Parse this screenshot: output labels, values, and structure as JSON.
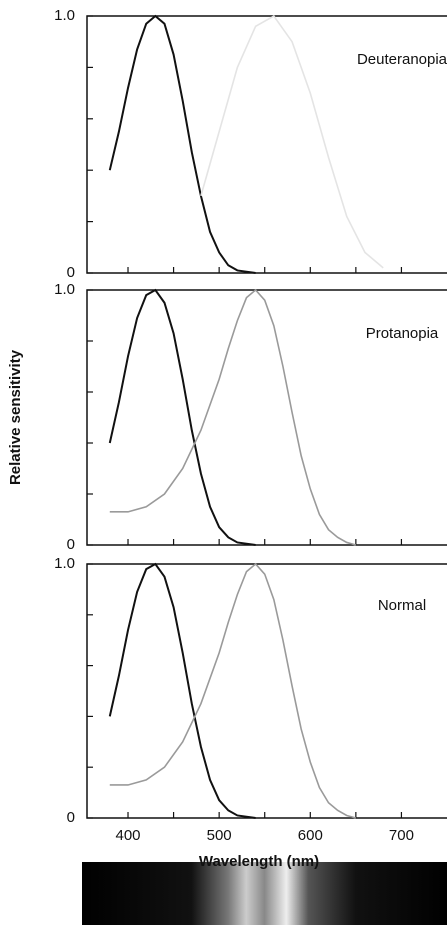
{
  "chart_data": [
    {
      "type": "line",
      "annotation": "Deuteranopia",
      "xlim": [
        355,
        750
      ],
      "ylim": [
        0,
        1
      ],
      "xticks": [
        400,
        500,
        600,
        700
      ],
      "xticks_minor": [
        450,
        550,
        650
      ],
      "xtick_labels": false,
      "yticks": [
        0,
        {
          "value": 1,
          "label": "1.0"
        }
      ],
      "yticks_minor": [
        0.2,
        0.4,
        0.6,
        0.8
      ],
      "series": [
        {
          "color": "#111111",
          "x": [
            380,
            390,
            400,
            410,
            420,
            430,
            440,
            450,
            460,
            470,
            480,
            490,
            500,
            510,
            520,
            530,
            540
          ],
          "values": [
            0.4,
            0.55,
            0.72,
            0.87,
            0.97,
            1.0,
            0.97,
            0.85,
            0.67,
            0.47,
            0.3,
            0.16,
            0.08,
            0.03,
            0.01,
            0.005,
            0
          ]
        },
        {
          "color": "#e4e4e4",
          "x": [
            480,
            500,
            520,
            540,
            560,
            580,
            600,
            620,
            640,
            660,
            680
          ],
          "values": [
            0.3,
            0.55,
            0.8,
            0.96,
            1.0,
            0.9,
            0.7,
            0.45,
            0.22,
            0.08,
            0.02
          ]
        }
      ]
    },
    {
      "type": "line",
      "annotation": "Protanopia",
      "ylabel": "Relative sensitivity",
      "xlim": [
        355,
        750
      ],
      "ylim": [
        0,
        1
      ],
      "xticks": [
        400,
        500,
        600,
        700
      ],
      "xticks_minor": [
        450,
        550,
        650
      ],
      "xtick_labels": false,
      "yticks": [
        0,
        {
          "value": 1,
          "label": "1.0"
        }
      ],
      "yticks_minor": [
        0.2,
        0.4,
        0.6,
        0.8
      ],
      "series": [
        {
          "color": "#111111",
          "x": [
            380,
            390,
            400,
            410,
            420,
            430,
            440,
            450,
            460,
            470,
            480,
            490,
            500,
            510,
            520,
            530,
            540
          ],
          "values": [
            0.4,
            0.56,
            0.74,
            0.89,
            0.98,
            1.0,
            0.95,
            0.83,
            0.65,
            0.45,
            0.28,
            0.15,
            0.07,
            0.03,
            0.01,
            0.005,
            0
          ]
        },
        {
          "color": "#9a9a9a",
          "x": [
            380,
            400,
            420,
            440,
            460,
            480,
            500,
            510,
            520,
            530,
            540,
            550,
            560,
            570,
            580,
            590,
            600,
            610,
            620,
            630,
            640,
            650
          ],
          "values": [
            0.13,
            0.13,
            0.15,
            0.2,
            0.3,
            0.45,
            0.65,
            0.77,
            0.88,
            0.97,
            1.0,
            0.96,
            0.86,
            0.7,
            0.52,
            0.35,
            0.22,
            0.12,
            0.06,
            0.03,
            0.01,
            0
          ]
        }
      ]
    },
    {
      "type": "line",
      "annotation": "Normal",
      "xlabel": "Wavelength (nm)",
      "xlim": [
        355,
        750
      ],
      "ylim": [
        0,
        1
      ],
      "xticks": [
        400,
        500,
        600,
        700
      ],
      "xticks_minor": [
        450,
        550,
        650
      ],
      "xtick_labels": true,
      "yticks": [
        0,
        {
          "value": 1,
          "label": "1.0"
        }
      ],
      "yticks_minor": [
        0.2,
        0.4,
        0.6,
        0.8
      ],
      "series": [
        {
          "color": "#111111",
          "x": [
            380,
            390,
            400,
            410,
            420,
            430,
            440,
            450,
            460,
            470,
            480,
            490,
            500,
            510,
            520,
            530,
            540
          ],
          "values": [
            0.4,
            0.56,
            0.74,
            0.89,
            0.98,
            1.0,
            0.95,
            0.83,
            0.65,
            0.45,
            0.28,
            0.15,
            0.07,
            0.03,
            0.01,
            0.005,
            0
          ]
        },
        {
          "color": "#9a9a9a",
          "x": [
            380,
            400,
            420,
            440,
            460,
            480,
            500,
            510,
            520,
            530,
            540,
            550,
            560,
            570,
            580,
            590,
            600,
            610,
            620,
            630,
            640,
            650
          ],
          "values": [
            0.13,
            0.13,
            0.15,
            0.2,
            0.3,
            0.45,
            0.65,
            0.77,
            0.88,
            0.97,
            1.0,
            0.96,
            0.86,
            0.7,
            0.52,
            0.35,
            0.22,
            0.12,
            0.06,
            0.03,
            0.01,
            0
          ]
        }
      ]
    }
  ]
}
